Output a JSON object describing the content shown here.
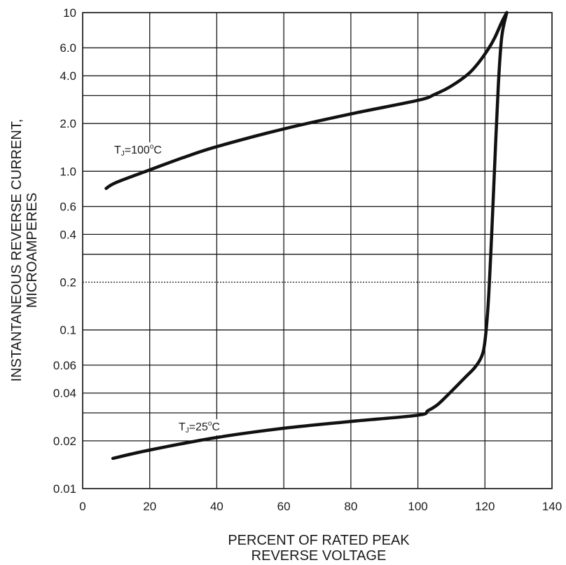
{
  "chart_data": {
    "type": "line",
    "title": "",
    "xlabel": [
      "PERCENT OF RATED PEAK",
      "REVERSE VOLTAGE"
    ],
    "ylabel": [
      "INSTANTANEOUS REVERSE CURRENT,",
      "MICROAMPERES"
    ],
    "xlim": [
      0,
      140
    ],
    "ylim": [
      0.01,
      10
    ],
    "yscale": "log",
    "grid": true,
    "xticks": [
      0,
      20,
      40,
      60,
      80,
      100,
      120,
      140
    ],
    "xtick_labels": [
      "0",
      "20",
      "40",
      "60",
      "80",
      "100",
      "120",
      "140"
    ],
    "yticks": [
      0.01,
      0.02,
      0.04,
      0.06,
      0.1,
      0.2,
      0.4,
      0.6,
      1.0,
      2.0,
      4.0,
      6.0,
      10
    ],
    "ytick_labels": [
      "0.01",
      "0.02",
      "0.04",
      "0.06",
      "0.1",
      "0.2",
      "0.4",
      "0.6",
      "1.0",
      "2.0",
      "4.0",
      "6.0",
      "10"
    ],
    "series": [
      {
        "label": {
          "base": "T",
          "sub": "J",
          "mid": "=100",
          "sup": "o",
          "end": "C"
        },
        "x": [
          7,
          10,
          20,
          30,
          40,
          60,
          80,
          100,
          105,
          110,
          115,
          118,
          121,
          123,
          125,
          126.5
        ],
        "y": [
          0.78,
          0.85,
          1.02,
          1.22,
          1.43,
          1.85,
          2.3,
          2.8,
          3.05,
          3.45,
          4.1,
          4.8,
          5.9,
          7.0,
          8.7,
          10.0
        ]
      },
      {
        "label": {
          "base": "T",
          "sub": "J",
          "mid": "=25",
          "sup": "o",
          "end": "C"
        },
        "x": [
          9,
          20,
          40,
          60,
          80,
          100,
          103,
          106,
          110,
          114,
          117,
          119,
          120,
          121,
          122,
          123,
          124,
          125,
          126.5
        ],
        "y": [
          0.0155,
          0.0175,
          0.021,
          0.024,
          0.0265,
          0.029,
          0.031,
          0.034,
          0.041,
          0.05,
          0.058,
          0.068,
          0.085,
          0.15,
          0.4,
          1.2,
          3.5,
          7.0,
          10.0
        ]
      }
    ]
  }
}
